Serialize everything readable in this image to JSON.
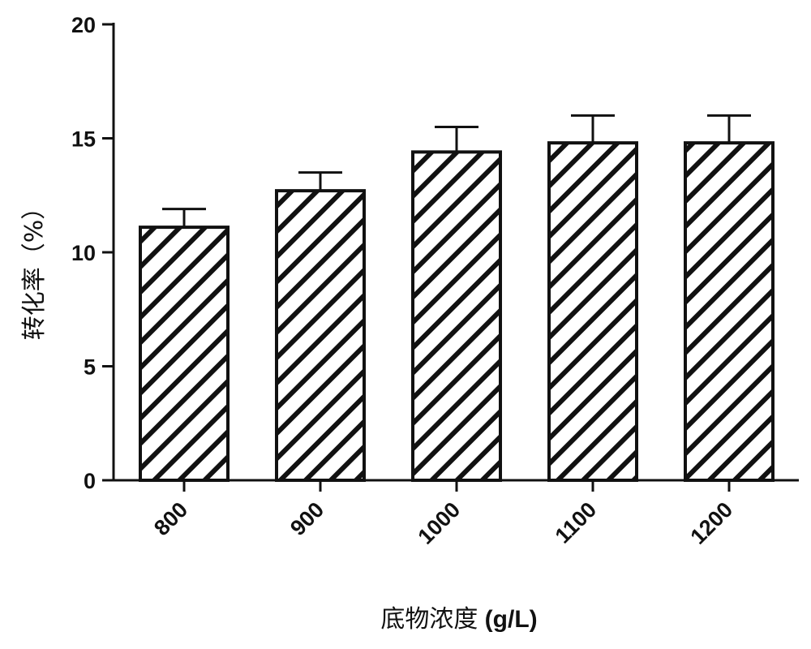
{
  "chart_data": {
    "type": "bar",
    "categories": [
      "800",
      "900",
      "1000",
      "1100",
      "1200"
    ],
    "values": [
      11.1,
      12.7,
      14.4,
      14.8,
      14.8
    ],
    "errors": [
      0.8,
      0.8,
      1.1,
      1.2,
      1.2
    ],
    "ylim": [
      0,
      20
    ],
    "yticks": [
      "0",
      "5",
      "10",
      "15",
      "20"
    ],
    "xlabel": "底物浓度 (g/L)",
    "xlabel_main": "底物浓度",
    "xlabel_unit": " (g/L)",
    "ylabel": "转化率（%）",
    "bar_pattern": "diagonal-hatch",
    "bar_fill": "#ffffff",
    "hatch_color": "#111111",
    "grid": false,
    "legend": "none"
  }
}
